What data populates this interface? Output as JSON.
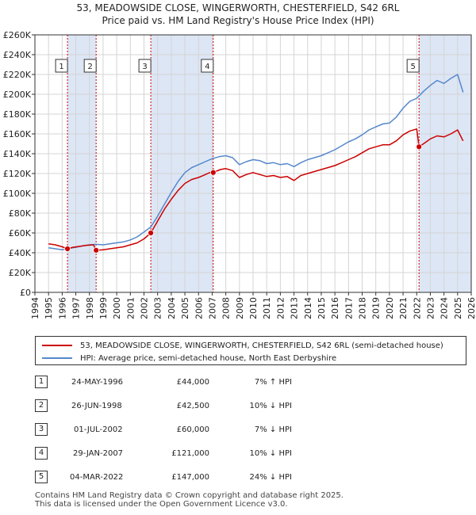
{
  "header": {
    "title_line1": "53, MEADOWSIDE CLOSE, WINGERWORTH, CHESTERFIELD, S42 6RL",
    "title_line2": "Price paid vs. HM Land Registry's House Price Index (HPI)"
  },
  "colors": {
    "property": "#cc0000",
    "hpi": "#5588cc",
    "shade": "#dde6f5",
    "grid": "#d4d4d4",
    "marker_line": "#cc0000"
  },
  "chart_data": {
    "type": "line",
    "title": "53, MEADOWSIDE CLOSE, WINGERWORTH, CHESTERFIELD, S42 6RL — Price paid vs. HM Land Registry's House Price Index (HPI)",
    "xlabel": "",
    "ylabel": "",
    "xlim": [
      1994,
      2026
    ],
    "ylim": [
      0,
      260000
    ],
    "x_ticks": [
      1994,
      1995,
      1996,
      1997,
      1998,
      1999,
      2000,
      2001,
      2002,
      2003,
      2004,
      2005,
      2006,
      2007,
      2008,
      2009,
      2010,
      2011,
      2012,
      2013,
      2014,
      2015,
      2016,
      2017,
      2018,
      2019,
      2020,
      2021,
      2022,
      2023,
      2024,
      2025,
      2026
    ],
    "y_ticks": [
      0,
      20000,
      40000,
      60000,
      80000,
      100000,
      120000,
      140000,
      160000,
      180000,
      200000,
      220000,
      240000,
      260000
    ],
    "y_tick_labels": [
      "£0",
      "£20K",
      "£40K",
      "£60K",
      "£80K",
      "£100K",
      "£120K",
      "£140K",
      "£160K",
      "£180K",
      "£200K",
      "£220K",
      "£240K",
      "£260K"
    ],
    "grid": true,
    "shaded_spans": [
      [
        1996.39,
        1998.49
      ],
      [
        2002.5,
        2007.08
      ],
      [
        2022.17,
        2026
      ]
    ],
    "sales": [
      {
        "label": "1",
        "x": 1996.39,
        "value": 44000
      },
      {
        "label": "2",
        "x": 1998.49,
        "value": 42500
      },
      {
        "label": "3",
        "x": 2002.5,
        "value": 60000
      },
      {
        "label": "4",
        "x": 2007.08,
        "value": 121000
      },
      {
        "label": "5",
        "x": 2022.17,
        "value": 147000
      }
    ],
    "series": [
      {
        "name": "53, MEADOWSIDE CLOSE, WINGERWORTH, CHESTERFIELD, S42 6RL (semi-detached house)",
        "color": "#cc0000",
        "points": [
          [
            1995.0,
            49000
          ],
          [
            1995.5,
            48000
          ],
          [
            1996.0,
            46000
          ],
          [
            1996.39,
            44000
          ],
          [
            1996.8,
            45500
          ],
          [
            1997.3,
            46500
          ],
          [
            1997.8,
            47500
          ],
          [
            1998.3,
            48000
          ],
          [
            1998.49,
            42500
          ],
          [
            1999.0,
            43000
          ],
          [
            1999.5,
            44000
          ],
          [
            2000.0,
            45000
          ],
          [
            2000.5,
            46000
          ],
          [
            2001.0,
            48000
          ],
          [
            2001.5,
            50000
          ],
          [
            2002.0,
            54000
          ],
          [
            2002.5,
            60000
          ],
          [
            2003.0,
            72000
          ],
          [
            2003.5,
            84000
          ],
          [
            2004.0,
            94000
          ],
          [
            2004.5,
            103000
          ],
          [
            2005.0,
            110000
          ],
          [
            2005.5,
            114000
          ],
          [
            2006.0,
            116000
          ],
          [
            2006.5,
            119000
          ],
          [
            2007.0,
            122000
          ],
          [
            2007.08,
            121000
          ],
          [
            2007.6,
            124000
          ],
          [
            2008.0,
            125000
          ],
          [
            2008.5,
            123000
          ],
          [
            2009.0,
            116000
          ],
          [
            2009.5,
            119000
          ],
          [
            2010.0,
            121000
          ],
          [
            2010.5,
            119000
          ],
          [
            2011.0,
            117000
          ],
          [
            2011.5,
            118000
          ],
          [
            2012.0,
            116000
          ],
          [
            2012.5,
            117000
          ],
          [
            2013.0,
            113000
          ],
          [
            2013.5,
            118000
          ],
          [
            2014.0,
            120000
          ],
          [
            2014.5,
            122000
          ],
          [
            2015.0,
            124000
          ],
          [
            2015.5,
            126000
          ],
          [
            2016.0,
            128000
          ],
          [
            2016.5,
            131000
          ],
          [
            2017.0,
            134000
          ],
          [
            2017.5,
            137000
          ],
          [
            2018.0,
            141000
          ],
          [
            2018.5,
            145000
          ],
          [
            2019.0,
            147000
          ],
          [
            2019.5,
            149000
          ],
          [
            2020.0,
            149000
          ],
          [
            2020.5,
            153000
          ],
          [
            2021.0,
            159000
          ],
          [
            2021.5,
            163000
          ],
          [
            2022.0,
            165000
          ],
          [
            2022.17,
            147000
          ],
          [
            2022.5,
            150000
          ],
          [
            2023.0,
            155000
          ],
          [
            2023.5,
            158000
          ],
          [
            2024.0,
            157000
          ],
          [
            2024.5,
            160000
          ],
          [
            2025.0,
            164000
          ],
          [
            2025.4,
            153000
          ]
        ]
      },
      {
        "name": "HPI: Average price, semi-detached house, North East Derbyshire",
        "color": "#5588cc",
        "points": [
          [
            1995.0,
            45000
          ],
          [
            1995.5,
            44000
          ],
          [
            1996.0,
            43000
          ],
          [
            1996.5,
            44500
          ],
          [
            1997.0,
            45500
          ],
          [
            1997.5,
            47000
          ],
          [
            1998.0,
            48000
          ],
          [
            1998.5,
            48500
          ],
          [
            1999.0,
            48000
          ],
          [
            1999.5,
            49000
          ],
          [
            2000.0,
            50000
          ],
          [
            2000.5,
            51000
          ],
          [
            2001.0,
            53000
          ],
          [
            2001.5,
            56000
          ],
          [
            2002.0,
            61000
          ],
          [
            2002.5,
            66000
          ],
          [
            2003.0,
            77000
          ],
          [
            2003.5,
            89000
          ],
          [
            2004.0,
            101000
          ],
          [
            2004.5,
            112000
          ],
          [
            2005.0,
            121000
          ],
          [
            2005.5,
            126000
          ],
          [
            2006.0,
            129000
          ],
          [
            2006.5,
            132000
          ],
          [
            2007.0,
            135000
          ],
          [
            2007.5,
            137000
          ],
          [
            2008.0,
            138000
          ],
          [
            2008.5,
            136000
          ],
          [
            2009.0,
            129000
          ],
          [
            2009.5,
            132000
          ],
          [
            2010.0,
            134000
          ],
          [
            2010.5,
            133000
          ],
          [
            2011.0,
            130000
          ],
          [
            2011.5,
            131000
          ],
          [
            2012.0,
            129000
          ],
          [
            2012.5,
            130000
          ],
          [
            2013.0,
            127000
          ],
          [
            2013.5,
            131000
          ],
          [
            2014.0,
            134000
          ],
          [
            2014.5,
            136000
          ],
          [
            2015.0,
            138000
          ],
          [
            2015.5,
            141000
          ],
          [
            2016.0,
            144000
          ],
          [
            2016.5,
            148000
          ],
          [
            2017.0,
            152000
          ],
          [
            2017.5,
            155000
          ],
          [
            2018.0,
            159000
          ],
          [
            2018.5,
            164000
          ],
          [
            2019.0,
            167000
          ],
          [
            2019.5,
            170000
          ],
          [
            2020.0,
            171000
          ],
          [
            2020.5,
            177000
          ],
          [
            2021.0,
            186000
          ],
          [
            2021.5,
            193000
          ],
          [
            2022.0,
            196000
          ],
          [
            2022.5,
            203000
          ],
          [
            2023.0,
            209000
          ],
          [
            2023.5,
            214000
          ],
          [
            2024.0,
            211000
          ],
          [
            2024.5,
            216000
          ],
          [
            2025.0,
            220000
          ],
          [
            2025.4,
            202000
          ]
        ]
      }
    ]
  },
  "legend": {
    "items": [
      {
        "label": "53, MEADOWSIDE CLOSE, WINGERWORTH, CHESTERFIELD, S42 6RL (semi-detached house)",
        "color": "#cc0000"
      },
      {
        "label": "HPI: Average price, semi-detached house, North East Derbyshire",
        "color": "#5588cc"
      }
    ]
  },
  "sales_table": [
    {
      "num": "1",
      "date": "24-MAY-1996",
      "price": "£44,000",
      "hpi": "7% ↑ HPI"
    },
    {
      "num": "2",
      "date": "26-JUN-1998",
      "price": "£42,500",
      "hpi": "10% ↓ HPI"
    },
    {
      "num": "3",
      "date": "01-JUL-2002",
      "price": "£60,000",
      "hpi": "7% ↓ HPI"
    },
    {
      "num": "4",
      "date": "29-JAN-2007",
      "price": "£121,000",
      "hpi": "10% ↓ HPI"
    },
    {
      "num": "5",
      "date": "04-MAR-2022",
      "price": "£147,000",
      "hpi": "24% ↓ HPI"
    }
  ],
  "footer": {
    "line1": "Contains HM Land Registry data © Crown copyright and database right 2025.",
    "line2": "This data is licensed under the Open Government Licence v3.0."
  }
}
